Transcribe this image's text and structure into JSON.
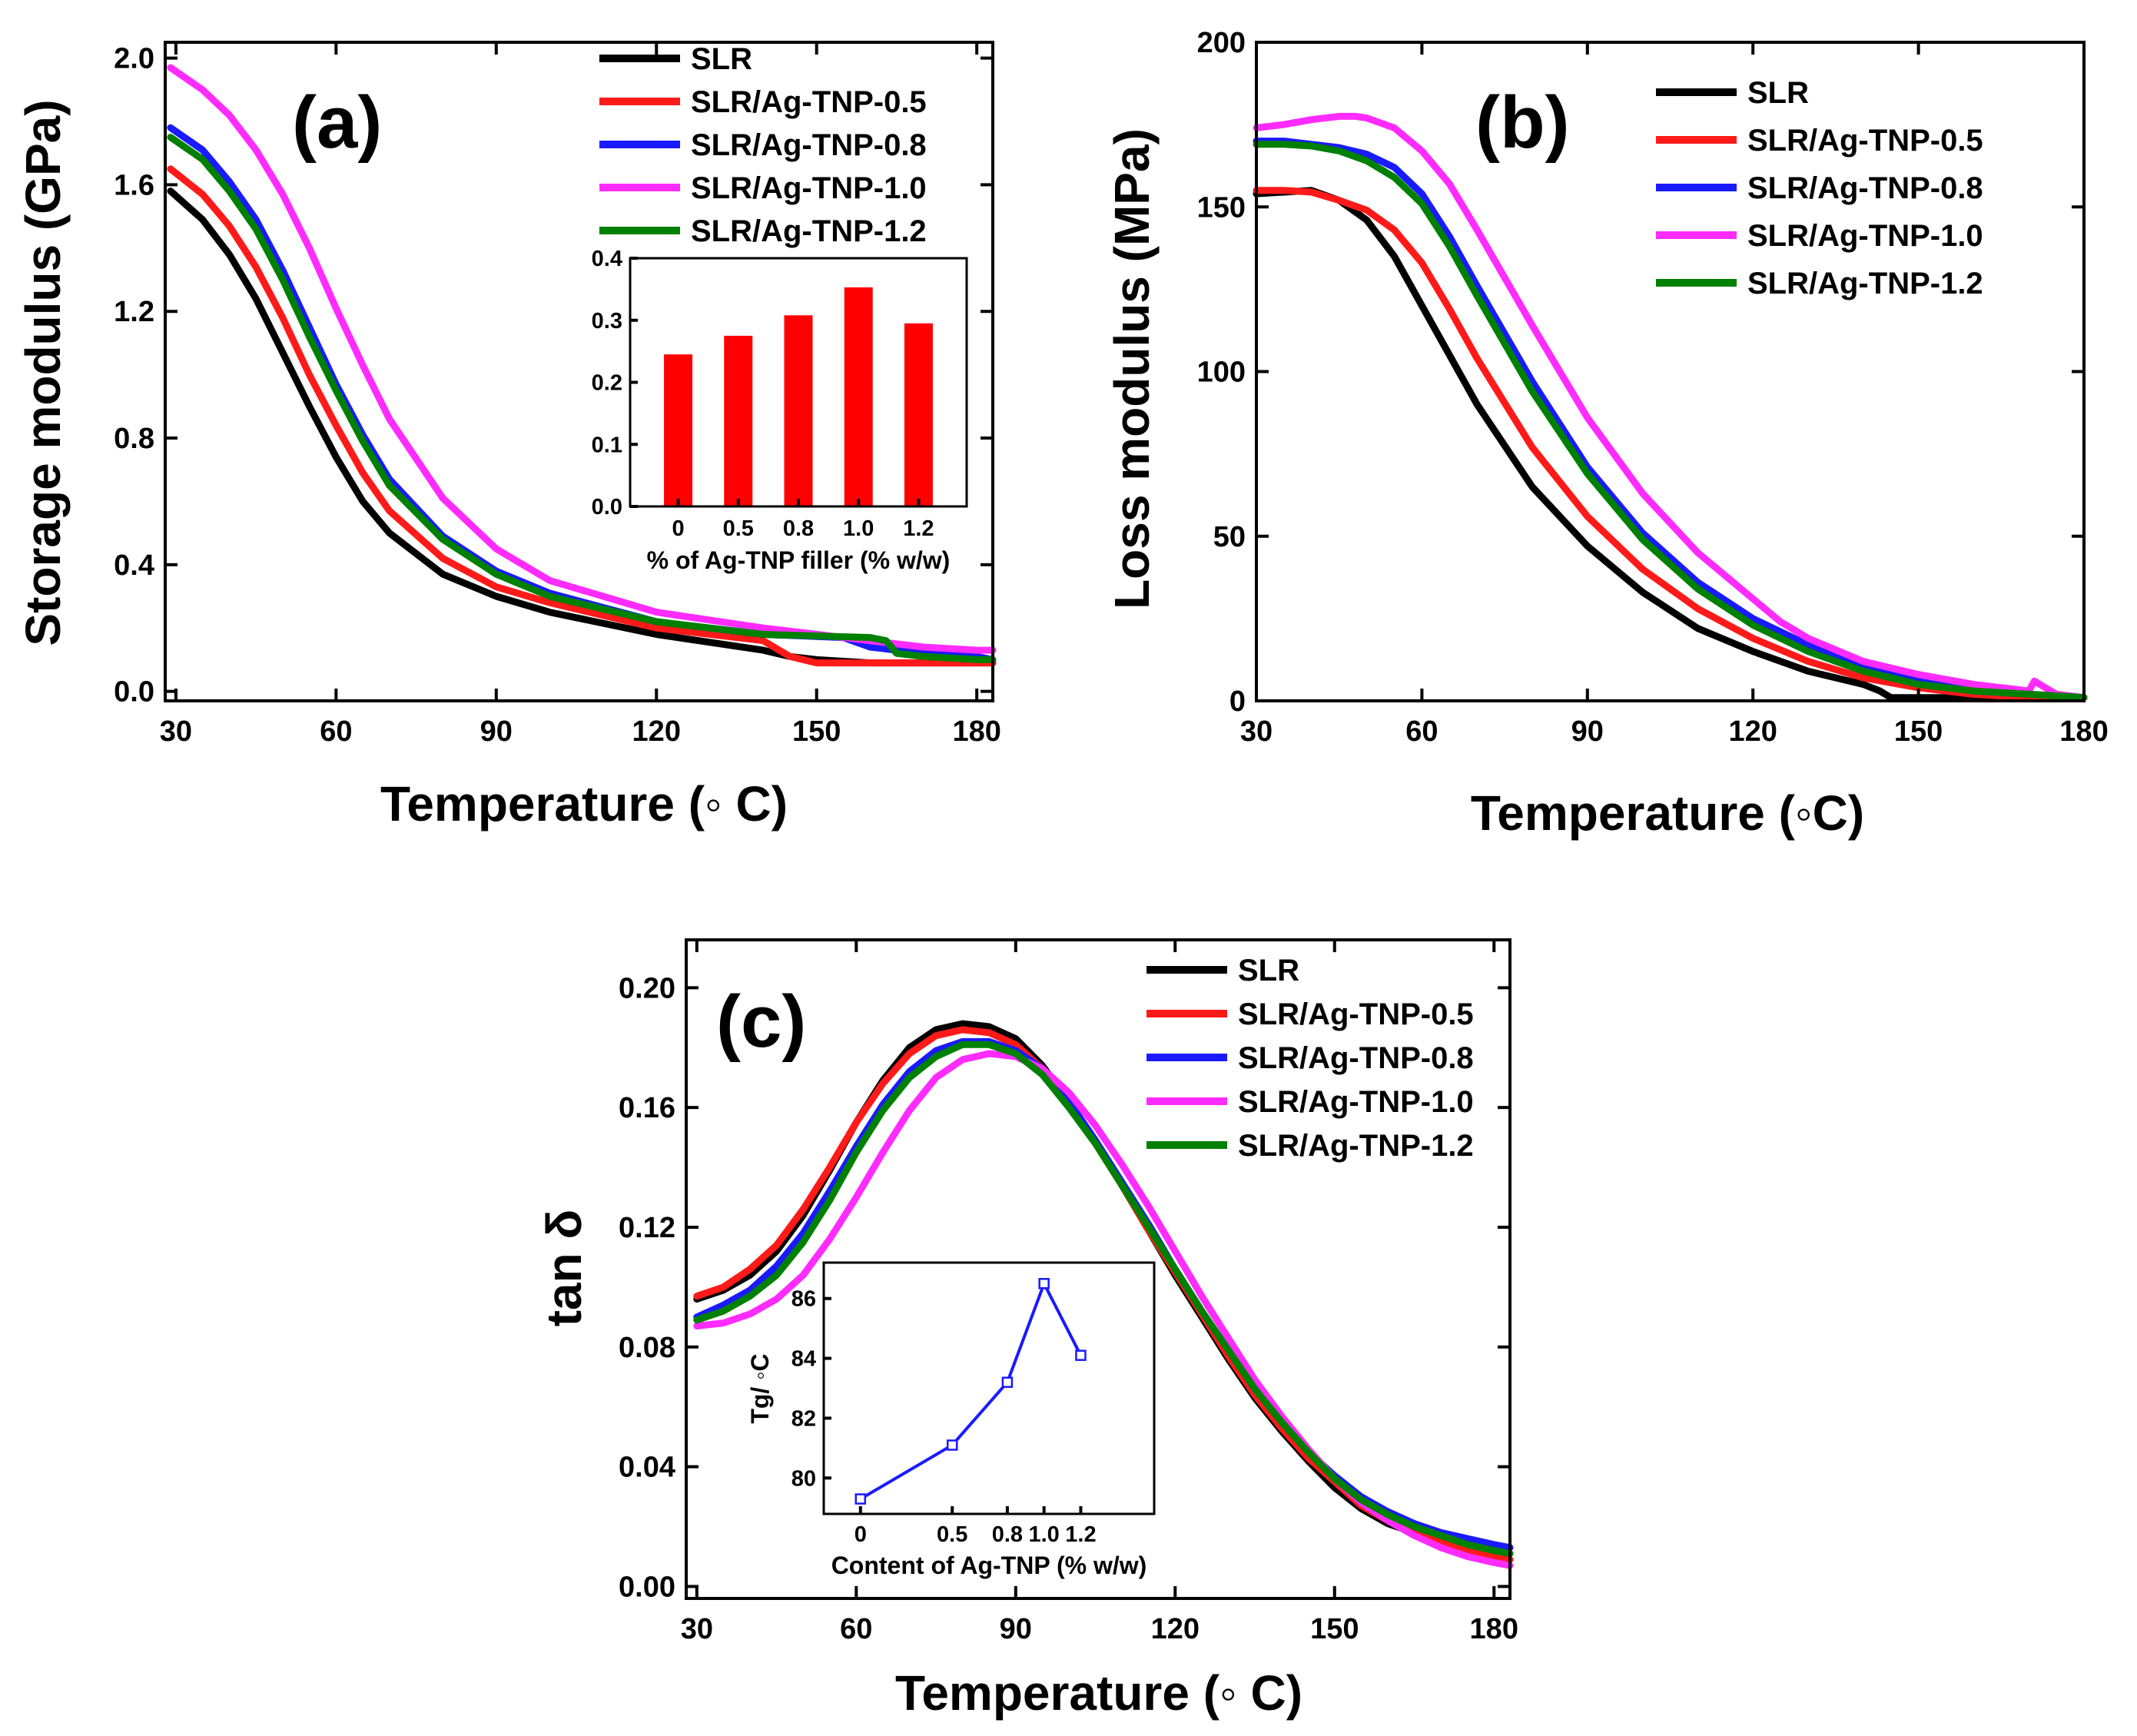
{
  "colors": {
    "SLR": "#000000",
    "SLR/Ag-TNP-0.5": "#ff1a1a",
    "SLR/Ag-TNP-0.8": "#1a1aff",
    "SLR/Ag-TNP-1.0": "#ff2bff",
    "SLR/Ag-TNP-1.2": "#008000",
    "bar": "#ff0000",
    "inset_line": "#1a1aff"
  },
  "chart_data": [
    {
      "panel": "a",
      "type": "line",
      "label": "(a)",
      "xlabel": "Temperature (◦ C)",
      "ylabel": "Storage modulus (GPa)",
      "xlim": [
        28,
        183
      ],
      "ylim": [
        -0.03,
        2.05
      ],
      "xticks": [
        "30",
        "60",
        "90",
        "120",
        "150",
        "180"
      ],
      "yticks": [
        "0.0",
        "0.4",
        "0.8",
        "1.2",
        "1.6",
        "2.0"
      ],
      "legend_position": "top-right",
      "series": [
        {
          "name": "SLR",
          "x": [
            29,
            35,
            40,
            45,
            50,
            55,
            60,
            65,
            70,
            80,
            90,
            100,
            120,
            140,
            145,
            150,
            160,
            170,
            180,
            183
          ],
          "y": [
            1.58,
            1.49,
            1.38,
            1.24,
            1.07,
            0.9,
            0.74,
            0.6,
            0.5,
            0.37,
            0.3,
            0.25,
            0.18,
            0.13,
            0.11,
            0.1,
            0.09,
            0.09,
            0.09,
            0.09
          ]
        },
        {
          "name": "SLR/Ag-TNP-0.5",
          "x": [
            29,
            35,
            40,
            45,
            50,
            55,
            60,
            65,
            70,
            80,
            90,
            100,
            120,
            140,
            142,
            145,
            150,
            160,
            170,
            180,
            183
          ],
          "y": [
            1.65,
            1.57,
            1.47,
            1.34,
            1.18,
            1.0,
            0.84,
            0.69,
            0.57,
            0.42,
            0.33,
            0.28,
            0.2,
            0.16,
            0.14,
            0.11,
            0.09,
            0.09,
            0.09,
            0.09,
            0.09
          ]
        },
        {
          "name": "SLR/Ag-TNP-0.8",
          "x": [
            29,
            35,
            40,
            45,
            50,
            55,
            60,
            65,
            70,
            80,
            90,
            100,
            120,
            140,
            155,
            160,
            165,
            170,
            180,
            183
          ],
          "y": [
            1.78,
            1.71,
            1.61,
            1.49,
            1.33,
            1.15,
            0.97,
            0.81,
            0.67,
            0.49,
            0.38,
            0.31,
            0.22,
            0.18,
            0.17,
            0.14,
            0.13,
            0.13,
            0.11,
            0.1
          ]
        },
        {
          "name": "SLR/Ag-TNP-1.0",
          "x": [
            29,
            35,
            40,
            45,
            50,
            55,
            60,
            65,
            70,
            80,
            90,
            100,
            120,
            140,
            160,
            170,
            180,
            183
          ],
          "y": [
            1.97,
            1.9,
            1.82,
            1.71,
            1.57,
            1.4,
            1.21,
            1.03,
            0.86,
            0.61,
            0.45,
            0.35,
            0.25,
            0.2,
            0.16,
            0.14,
            0.13,
            0.13
          ]
        },
        {
          "name": "SLR/Ag-TNP-1.2",
          "x": [
            29,
            35,
            40,
            45,
            50,
            55,
            60,
            65,
            70,
            80,
            90,
            100,
            120,
            140,
            160,
            163,
            165,
            170,
            180,
            183
          ],
          "y": [
            1.75,
            1.68,
            1.58,
            1.46,
            1.3,
            1.12,
            0.95,
            0.79,
            0.65,
            0.48,
            0.37,
            0.3,
            0.22,
            0.18,
            0.17,
            0.16,
            0.12,
            0.11,
            0.1,
            0.1
          ]
        }
      ],
      "inset": {
        "type": "bar",
        "xlabel": "% of Ag-TNP filler (% w/w)",
        "categories": [
          "0",
          "0.5",
          "0.8",
          "1.0",
          "1.2"
        ],
        "values": [
          0.245,
          0.275,
          0.308,
          0.353,
          0.295
        ],
        "ylim": [
          0.0,
          0.4
        ],
        "yticks": [
          "0.0",
          "0.1",
          "0.2",
          "0.3",
          "0.4"
        ]
      }
    },
    {
      "panel": "b",
      "type": "line",
      "label": "(b)",
      "xlabel": "Temperature (◦C)",
      "ylabel": "Loss modulus (MPa)",
      "xlim": [
        30,
        180
      ],
      "ylim": [
        0,
        200
      ],
      "xticks": [
        "30",
        "60",
        "90",
        "120",
        "150",
        "180"
      ],
      "yticks": [
        "0",
        "50",
        "100",
        "150",
        "200"
      ],
      "legend_position": "top-right",
      "series": [
        {
          "name": "SLR",
          "x": [
            30,
            35,
            40,
            45,
            50,
            55,
            60,
            65,
            70,
            80,
            90,
            100,
            110,
            120,
            130,
            140,
            143,
            145,
            150,
            160,
            170,
            180
          ],
          "y": [
            154,
            154.5,
            155,
            152,
            146,
            135,
            120,
            105,
            90,
            65,
            47,
            33,
            22,
            15,
            9,
            5,
            3,
            1,
            1,
            1,
            1,
            1
          ]
        },
        {
          "name": "SLR/Ag-TNP-0.5",
          "x": [
            30,
            35,
            40,
            45,
            50,
            55,
            60,
            65,
            70,
            80,
            90,
            100,
            110,
            120,
            130,
            140,
            150,
            160,
            170,
            180
          ],
          "y": [
            155,
            155,
            154.5,
            152,
            149,
            143,
            133,
            119,
            104,
            77,
            56,
            40,
            28,
            19,
            12,
            7,
            4,
            2,
            1,
            1
          ]
        },
        {
          "name": "SLR/Ag-TNP-0.8",
          "x": [
            30,
            35,
            40,
            45,
            50,
            55,
            60,
            65,
            70,
            80,
            90,
            100,
            110,
            120,
            130,
            140,
            150,
            160,
            170,
            180
          ],
          "y": [
            170,
            170,
            169,
            168,
            166,
            162,
            154,
            141,
            126,
            97,
            71,
            51,
            36,
            25,
            17,
            10,
            6,
            3,
            2,
            1
          ]
        },
        {
          "name": "SLR/Ag-TNP-1.0",
          "x": [
            30,
            35,
            40,
            45,
            48,
            50,
            55,
            60,
            65,
            70,
            80,
            90,
            100,
            110,
            120,
            125,
            126,
            130,
            140,
            150,
            160,
            165,
            170,
            171,
            175,
            180
          ],
          "y": [
            174,
            175,
            176.5,
            177.5,
            177.5,
            177,
            174,
            167,
            157,
            143,
            114,
            86,
            63,
            45,
            31,
            24,
            23,
            19,
            12,
            8,
            5,
            4,
            3,
            6,
            2,
            1
          ]
        },
        {
          "name": "SLR/Ag-TNP-1.2",
          "x": [
            30,
            35,
            40,
            45,
            50,
            55,
            60,
            65,
            70,
            80,
            90,
            100,
            110,
            120,
            130,
            140,
            150,
            160,
            170,
            180
          ],
          "y": [
            169,
            169,
            168.5,
            167,
            164,
            159,
            151,
            138,
            123,
            94,
            69,
            49,
            34,
            23,
            15,
            9,
            5,
            3,
            2,
            1
          ]
        }
      ]
    },
    {
      "panel": "c",
      "type": "line",
      "label": "(c)",
      "xlabel": "Temperature (◦ C)",
      "ylabel": "tan δ",
      "xlim": [
        28,
        183
      ],
      "ylim": [
        -0.004,
        0.216
      ],
      "xticks": [
        "30",
        "60",
        "90",
        "120",
        "150",
        "180"
      ],
      "yticks": [
        "0.00",
        "0.04",
        "0.08",
        "0.12",
        "0.16",
        "0.20"
      ],
      "legend_position": "top-right",
      "series": [
        {
          "name": "SLR",
          "x": [
            30,
            35,
            40,
            45,
            50,
            55,
            60,
            65,
            70,
            75,
            80,
            85,
            90,
            95,
            100,
            105,
            110,
            115,
            120,
            125,
            130,
            135,
            140,
            145,
            150,
            155,
            160,
            165,
            170,
            175,
            180,
            183
          ],
          "y": [
            0.096,
            0.099,
            0.104,
            0.112,
            0.124,
            0.139,
            0.155,
            0.169,
            0.18,
            0.186,
            0.188,
            0.187,
            0.183,
            0.174,
            0.162,
            0.149,
            0.134,
            0.119,
            0.104,
            0.09,
            0.076,
            0.063,
            0.052,
            0.042,
            0.033,
            0.026,
            0.021,
            0.018,
            0.016,
            0.014,
            0.012,
            0.011
          ]
        },
        {
          "name": "SLR/Ag-TNP-0.5",
          "x": [
            30,
            35,
            40,
            45,
            50,
            55,
            60,
            65,
            70,
            75,
            80,
            85,
            90,
            95,
            100,
            105,
            110,
            115,
            120,
            125,
            130,
            135,
            140,
            145,
            150,
            155,
            160,
            165,
            170,
            175,
            180,
            183
          ],
          "y": [
            0.097,
            0.1,
            0.106,
            0.114,
            0.126,
            0.14,
            0.155,
            0.168,
            0.178,
            0.184,
            0.186,
            0.185,
            0.181,
            0.173,
            0.161,
            0.148,
            0.134,
            0.119,
            0.105,
            0.091,
            0.077,
            0.064,
            0.053,
            0.043,
            0.035,
            0.027,
            0.022,
            0.018,
            0.015,
            0.012,
            0.01,
            0.009
          ]
        },
        {
          "name": "SLR/Ag-TNP-0.8",
          "x": [
            30,
            35,
            40,
            45,
            50,
            55,
            60,
            65,
            70,
            75,
            80,
            85,
            90,
            95,
            100,
            105,
            110,
            115,
            120,
            125,
            130,
            135,
            140,
            145,
            150,
            155,
            160,
            165,
            170,
            175,
            180,
            183
          ],
          "y": [
            0.09,
            0.094,
            0.099,
            0.107,
            0.118,
            0.132,
            0.147,
            0.161,
            0.172,
            0.179,
            0.182,
            0.182,
            0.179,
            0.173,
            0.162,
            0.149,
            0.135,
            0.121,
            0.106,
            0.092,
            0.079,
            0.066,
            0.055,
            0.045,
            0.037,
            0.03,
            0.025,
            0.021,
            0.018,
            0.016,
            0.014,
            0.013
          ]
        },
        {
          "name": "SLR/Ag-TNP-1.0",
          "x": [
            30,
            35,
            40,
            45,
            50,
            55,
            60,
            65,
            70,
            75,
            80,
            85,
            90,
            95,
            100,
            105,
            110,
            115,
            120,
            125,
            130,
            135,
            140,
            145,
            150,
            155,
            160,
            165,
            170,
            175,
            180,
            183
          ],
          "y": [
            0.087,
            0.088,
            0.091,
            0.096,
            0.104,
            0.116,
            0.13,
            0.145,
            0.159,
            0.17,
            0.176,
            0.178,
            0.177,
            0.173,
            0.165,
            0.154,
            0.141,
            0.127,
            0.112,
            0.097,
            0.083,
            0.069,
            0.057,
            0.046,
            0.036,
            0.028,
            0.022,
            0.017,
            0.013,
            0.01,
            0.008,
            0.007
          ]
        },
        {
          "name": "SLR/Ag-TNP-1.2",
          "x": [
            30,
            35,
            40,
            45,
            50,
            55,
            60,
            65,
            70,
            75,
            80,
            85,
            90,
            95,
            100,
            105,
            110,
            115,
            120,
            125,
            130,
            135,
            140,
            145,
            150,
            155,
            160,
            165,
            170,
            175,
            180,
            183
          ],
          "y": [
            0.089,
            0.092,
            0.097,
            0.104,
            0.115,
            0.129,
            0.145,
            0.159,
            0.17,
            0.177,
            0.181,
            0.181,
            0.178,
            0.171,
            0.16,
            0.148,
            0.134,
            0.12,
            0.106,
            0.092,
            0.079,
            0.066,
            0.055,
            0.045,
            0.036,
            0.029,
            0.024,
            0.02,
            0.017,
            0.014,
            0.012,
            0.011
          ]
        }
      ],
      "inset": {
        "type": "line",
        "xlabel": "Content of Ag-TNP (% w/w)",
        "ylabel": "Tg/ ◦C",
        "x": [
          0,
          0.5,
          0.8,
          1.0,
          1.2
        ],
        "y": [
          79.3,
          81.1,
          83.2,
          86.5,
          84.1
        ],
        "xlim": [
          -0.2,
          1.6
        ],
        "ylim": [
          78.8,
          87.2
        ],
        "xticks": [
          "0",
          "0.5",
          "0.8",
          "1.0",
          "1.2"
        ],
        "xtick_values": [
          0,
          0.5,
          0.8,
          1.0,
          1.2
        ],
        "yticks": [
          "80",
          "82",
          "84",
          "86"
        ],
        "ytick_values": [
          80,
          82,
          84,
          86
        ]
      }
    }
  ]
}
